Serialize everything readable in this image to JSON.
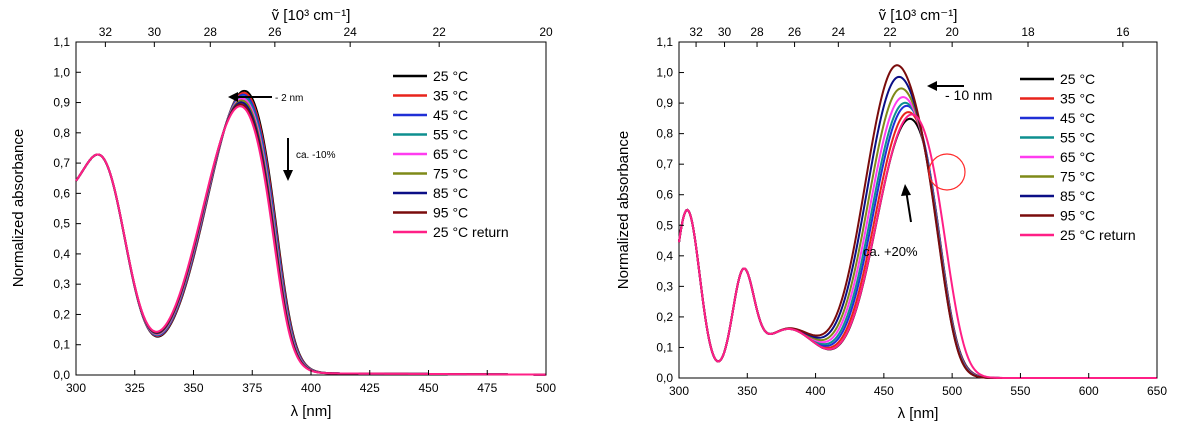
{
  "chart_data": [
    {
      "type": "line",
      "xlabel": "λ [nm]",
      "ylabel": "Normalized absorbance",
      "x2label": "ṽ [10³ cm⁻¹]",
      "xlim": [
        300,
        500
      ],
      "ylim": [
        0.0,
        1.1
      ],
      "xticks": [
        "300",
        "325",
        "350",
        "375",
        "400",
        "425",
        "450",
        "475",
        "500"
      ],
      "yticks": [
        "0,0",
        "0,1",
        "0,2",
        "0,3",
        "0,4",
        "0,5",
        "0,6",
        "0,7",
        "0,8",
        "0,9",
        "1,0",
        "1,1"
      ],
      "x2ticks": [
        "32",
        "30",
        "28",
        "26",
        "24",
        "22",
        "20"
      ],
      "legend_position": "top-right",
      "grid": false,
      "annotations": [
        "- 2 nm",
        "ca. -10%"
      ],
      "series": [
        {
          "name": "25 °C",
          "color": "#000000",
          "peak": 0.955,
          "shift": 0,
          "index": 0
        },
        {
          "name": "35 °C",
          "color": "#e8241c",
          "peak": 0.945,
          "shift": 0.25,
          "index": 1
        },
        {
          "name": "45 °C",
          "color": "#1f2fd6",
          "peak": 0.935,
          "shift": 0.5,
          "index": 2
        },
        {
          "name": "55 °C",
          "color": "#0e8f8f",
          "peak": 0.93,
          "shift": 0.75,
          "index": 3
        },
        {
          "name": "65 °C",
          "color": "#ff3cf0",
          "peak": 0.92,
          "shift": 1.0,
          "index": 4
        },
        {
          "name": "75 °C",
          "color": "#7f8a18",
          "peak": 0.915,
          "shift": 1.25,
          "index": 5
        },
        {
          "name": "85 °C",
          "color": "#0b0f86",
          "peak": 0.91,
          "shift": 1.5,
          "index": 6
        },
        {
          "name": "95 °C",
          "color": "#7a0c0c",
          "peak": 0.9,
          "shift": 1.75,
          "index": 7
        },
        {
          "name": "25 °C return",
          "color": "#ff1f86",
          "peak": 0.895,
          "shift": 2.0,
          "index": 8
        }
      ]
    },
    {
      "type": "line",
      "xlabel": "λ [nm]",
      "ylabel": "Normalized absorbance",
      "x2label": "ṽ [10³ cm⁻¹]",
      "xlim": [
        300,
        650
      ],
      "ylim": [
        0.0,
        1.1
      ],
      "xticks": [
        "300",
        "350",
        "400",
        "450",
        "500",
        "550",
        "600",
        "650"
      ],
      "yticks": [
        "0,0",
        "0,1",
        "0,2",
        "0,3",
        "0,4",
        "0,5",
        "0,6",
        "0,7",
        "0,8",
        "0,9",
        "1,0",
        "1,1"
      ],
      "x2ticks": [
        "32",
        "30",
        "28",
        "26",
        "24",
        "22",
        "20",
        "18",
        "16"
      ],
      "legend_position": "top-right",
      "grid": false,
      "annotations": [
        "- 10 nm",
        "ca. +20%"
      ],
      "series": [
        {
          "name": "25 °C",
          "color": "#000000",
          "peak": 0.83,
          "shift": 0,
          "index": 0
        },
        {
          "name": "35 °C",
          "color": "#e8241c",
          "peak": 0.85,
          "shift": 1.2,
          "index": 1
        },
        {
          "name": "45 °C",
          "color": "#1f2fd6",
          "peak": 0.87,
          "shift": 2.5,
          "index": 2
        },
        {
          "name": "55 °C",
          "color": "#0e8f8f",
          "peak": 0.88,
          "shift": 3.7,
          "index": 3
        },
        {
          "name": "65 °C",
          "color": "#ff3cf0",
          "peak": 0.9,
          "shift": 5.0,
          "index": 4
        },
        {
          "name": "75 °C",
          "color": "#7f8a18",
          "peak": 0.93,
          "shift": 6.2,
          "index": 5
        },
        {
          "name": "85 °C",
          "color": "#0b0f86",
          "peak": 0.97,
          "shift": 7.5,
          "index": 6
        },
        {
          "name": "95 °C",
          "color": "#7a0c0c",
          "peak": 1.01,
          "shift": 8.7,
          "index": 7
        },
        {
          "name": "25 °C return",
          "color": "#ff1f86",
          "peak": 0.82,
          "shift": 0.3,
          "index": 8
        }
      ]
    }
  ]
}
